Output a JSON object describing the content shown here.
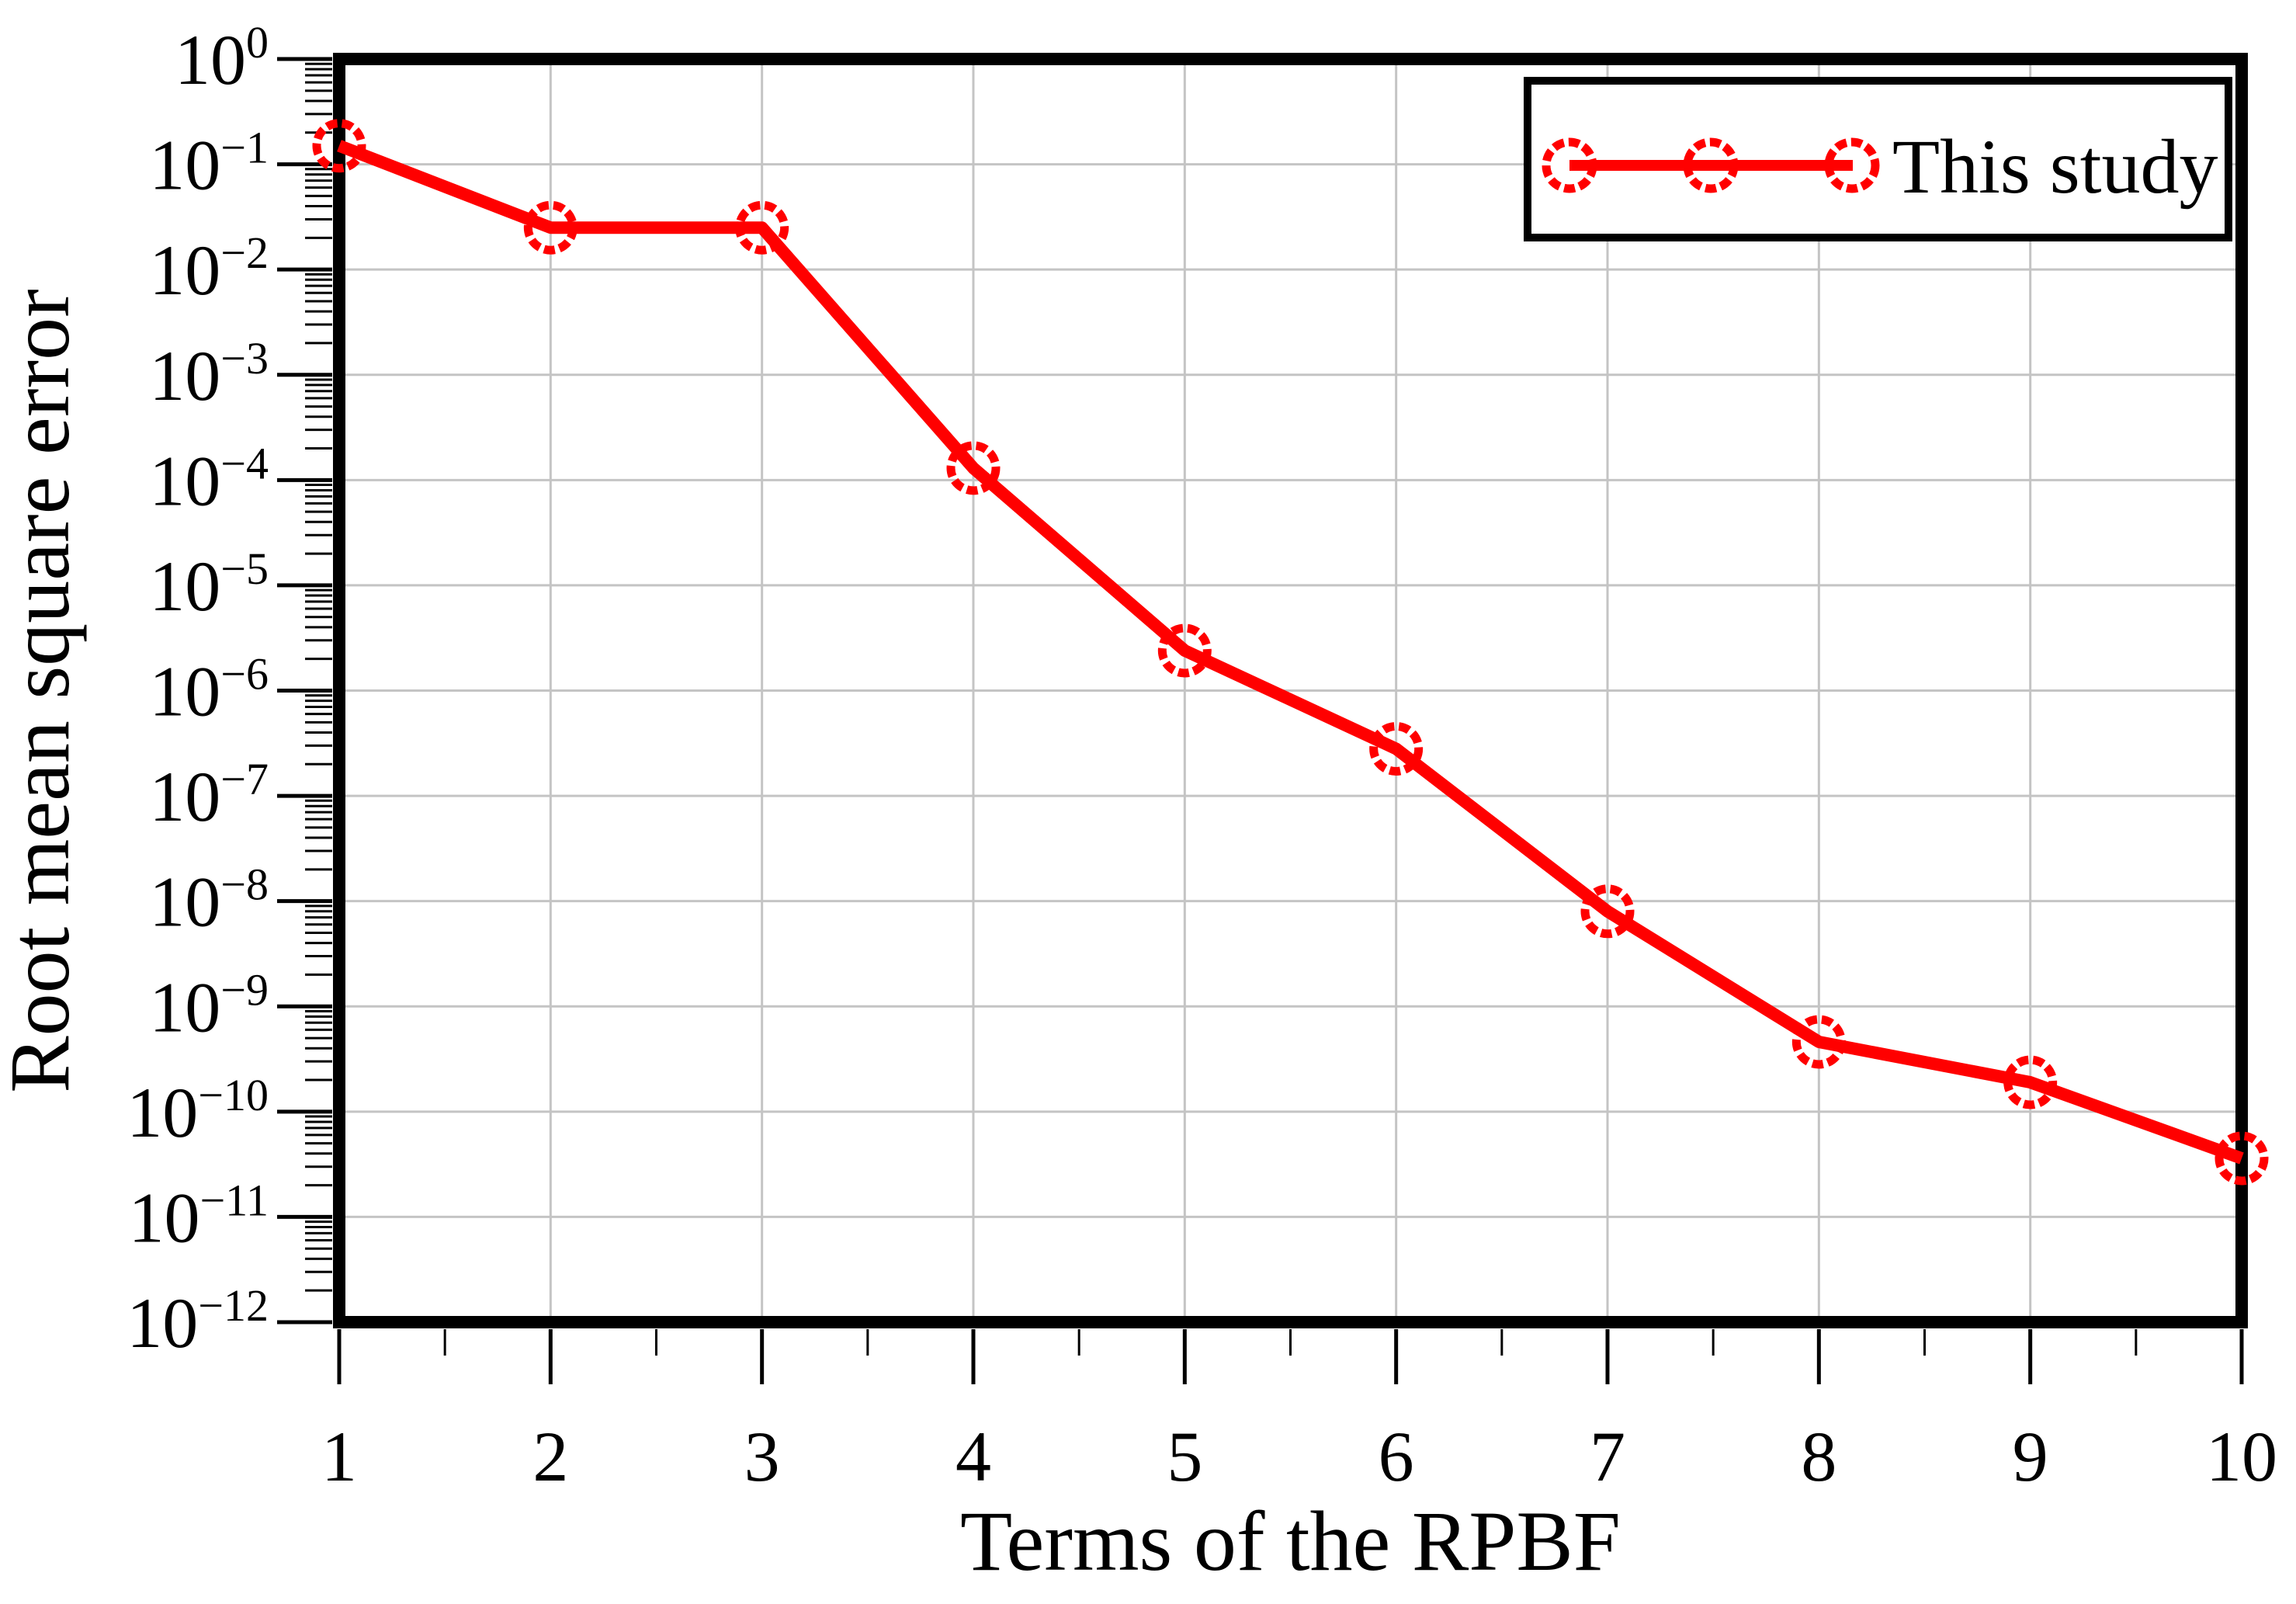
{
  "chart_data": {
    "type": "line",
    "title": "",
    "xlabel": "Terms of the RPBF",
    "ylabel": "Root mean square error",
    "x": [
      1,
      2,
      3,
      4,
      5,
      6,
      7,
      8,
      9,
      10
    ],
    "series": [
      {
        "name": "This study",
        "values": [
          0.15,
          0.025,
          0.025,
          0.00013,
          2.4e-06,
          2.8e-07,
          8e-09,
          4.6e-10,
          1.9e-10,
          3.6e-11
        ],
        "color": "#ff0000",
        "marker": "dashed-open-circle",
        "line_width": 16
      }
    ],
    "xlim": [
      1,
      10
    ],
    "ylim": [
      1e-12,
      1
    ],
    "x_axis_scale": "linear",
    "y_axis_scale": "log",
    "x_ticks": [
      1,
      2,
      3,
      4,
      5,
      6,
      7,
      8,
      9,
      10
    ],
    "x_minor_tick_step": 0.5,
    "y_tick_exponents": [
      0,
      -1,
      -2,
      -3,
      -4,
      -5,
      -6,
      -7,
      -8,
      -9,
      -10,
      -11,
      -12
    ],
    "grid": true,
    "legend": {
      "label": "This study",
      "position": "top-right"
    },
    "colors": {
      "series": "#ff0000",
      "grid": "#c4c4c4",
      "frame": "#000000",
      "background": "#ffffff",
      "text": "#000000"
    }
  }
}
